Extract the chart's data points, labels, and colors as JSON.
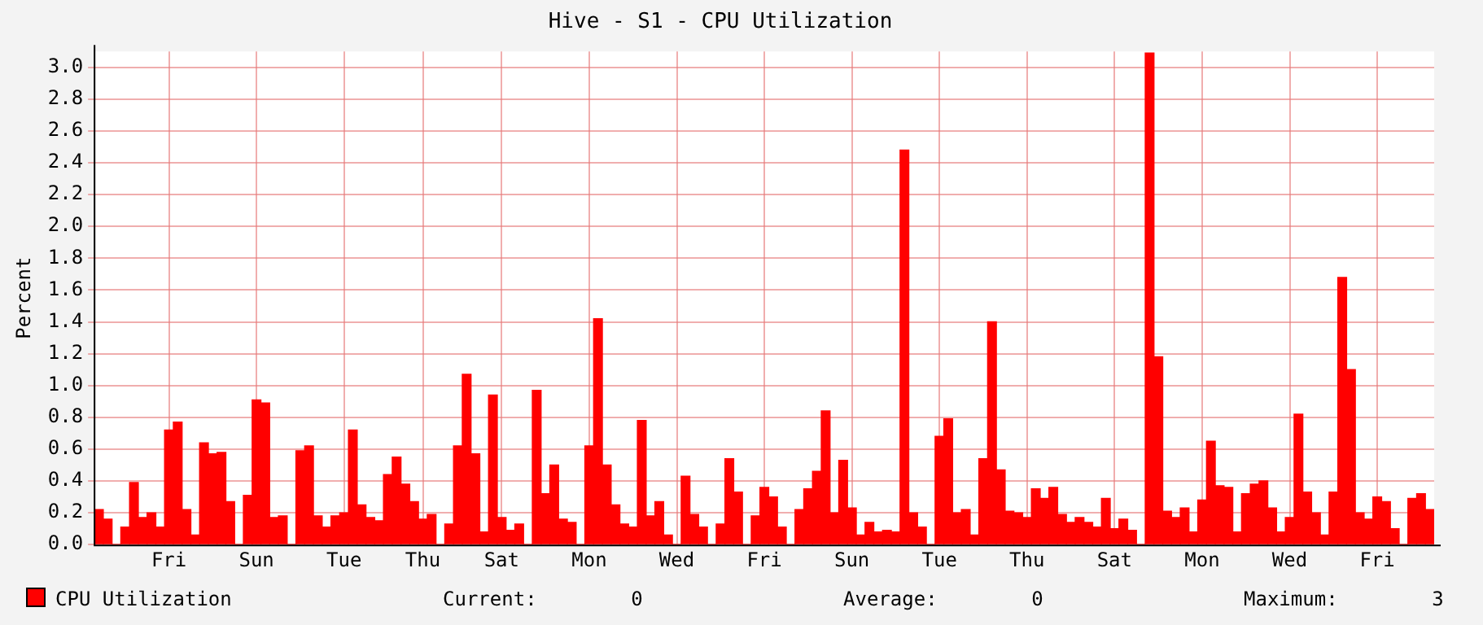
{
  "chart_data": {
    "type": "bar",
    "title": "Hive - S1 - CPU Utilization",
    "ylabel": "Percent",
    "categories": [
      null,
      null,
      null,
      null,
      null,
      null,
      null,
      null,
      "Fri",
      null,
      null,
      null,
      null,
      null,
      null,
      null,
      null,
      null,
      "Sun",
      null,
      null,
      null,
      null,
      null,
      null,
      null,
      null,
      null,
      "Tue",
      null,
      null,
      null,
      null,
      null,
      null,
      null,
      null,
      "Thu",
      null,
      null,
      null,
      null,
      null,
      null,
      null,
      null,
      "Sat",
      null,
      null,
      null,
      null,
      null,
      null,
      null,
      null,
      null,
      "Mon",
      null,
      null,
      null,
      null,
      null,
      null,
      null,
      null,
      null,
      "Wed",
      null,
      null,
      null,
      null,
      null,
      null,
      null,
      null,
      null,
      "Fri",
      null,
      null,
      null,
      null,
      null,
      null,
      null,
      null,
      null,
      "Sun",
      null,
      null,
      null,
      null,
      null,
      null,
      null,
      null,
      null,
      "Tue",
      null,
      null,
      null,
      null,
      null,
      null,
      null,
      null,
      null,
      "Thu",
      null,
      null,
      null,
      null,
      null,
      null,
      null,
      null,
      null,
      "Sat",
      null,
      null,
      null,
      null,
      null,
      null,
      null,
      null,
      null,
      "Mon",
      null,
      null,
      null,
      null,
      null,
      null,
      null,
      null,
      null,
      "Wed",
      null,
      null,
      null,
      null,
      null,
      null,
      null,
      null,
      null,
      "Fri",
      null,
      null,
      null,
      null,
      null,
      null
    ],
    "series": [
      {
        "name": "CPU Utilization",
        "color": "#ff0000",
        "values": [
          0.22,
          0.16,
          0,
          0.11,
          0.39,
          0.17,
          0.2,
          0.11,
          0.72,
          0.77,
          0.22,
          0.06,
          0.64,
          0.57,
          0.58,
          0.27,
          0,
          0.31,
          0.91,
          0.89,
          0.17,
          0.18,
          0,
          0.59,
          0.62,
          0.18,
          0.11,
          0.18,
          0.2,
          0.72,
          0.25,
          0.17,
          0.15,
          0.44,
          0.55,
          0.38,
          0.27,
          0.16,
          0.19,
          0,
          0.13,
          0.62,
          1.07,
          0.57,
          0.08,
          0.94,
          0.17,
          0.09,
          0.13,
          0,
          0.97,
          0.32,
          0.5,
          0.16,
          0.14,
          0,
          0.62,
          1.42,
          0.5,
          0.25,
          0.13,
          0.11,
          0.78,
          0.18,
          0.27,
          0.06,
          0,
          0.43,
          0.19,
          0.11,
          0,
          0.13,
          0.54,
          0.33,
          0,
          0.18,
          0.36,
          0.3,
          0.11,
          0,
          0.22,
          0.35,
          0.46,
          0.84,
          0.2,
          0.53,
          0.23,
          0.06,
          0.14,
          0.08,
          0.09,
          0.08,
          2.48,
          0.2,
          0.11,
          0,
          0.68,
          0.79,
          0.2,
          0.22,
          0.06,
          0.54,
          1.4,
          0.47,
          0.21,
          0.2,
          0.17,
          0.35,
          0.29,
          0.36,
          0.19,
          0.14,
          0.17,
          0.14,
          0.11,
          0.29,
          0.1,
          0.16,
          0.09,
          0,
          3.09,
          1.18,
          0.21,
          0.17,
          0.23,
          0.08,
          0.28,
          0.65,
          0.37,
          0.36,
          0.08,
          0.32,
          0.38,
          0.4,
          0.23,
          0.08,
          0.17,
          0.82,
          0.33,
          0.2,
          0.06,
          0.33,
          1.68,
          1.1,
          0.2,
          0.16,
          0.3,
          0.27,
          0.1,
          0,
          0.29,
          0.32,
          0.22
        ]
      }
    ],
    "ylim": [
      0,
      3.1
    ],
    "yticks": [
      {
        "value": 0,
        "label": "0.0"
      },
      {
        "value": 0.2,
        "label": "0.2"
      },
      {
        "value": 0.4,
        "label": "0.4"
      },
      {
        "value": 0.6,
        "label": "0.6"
      },
      {
        "value": 0.8,
        "label": "0.8"
      },
      {
        "value": 1,
        "label": "1.0"
      },
      {
        "value": 1.2,
        "label": "1.2"
      },
      {
        "value": 1.4,
        "label": "1.4"
      },
      {
        "value": 1.6,
        "label": "1.6"
      },
      {
        "value": 1.8,
        "label": "1.8"
      },
      {
        "value": 2,
        "label": "2.0"
      },
      {
        "value": 2.2,
        "label": "2.2"
      },
      {
        "value": 2.4,
        "label": "2.4"
      },
      {
        "value": 2.6,
        "label": "2.6"
      },
      {
        "value": 2.8,
        "label": "2.8"
      },
      {
        "value": 3,
        "label": "3.0"
      }
    ],
    "grid": true,
    "legend": "bottom left",
    "annotations": [
      "Current:        0",
      "Average:        0",
      "Maximum:        3"
    ]
  }
}
